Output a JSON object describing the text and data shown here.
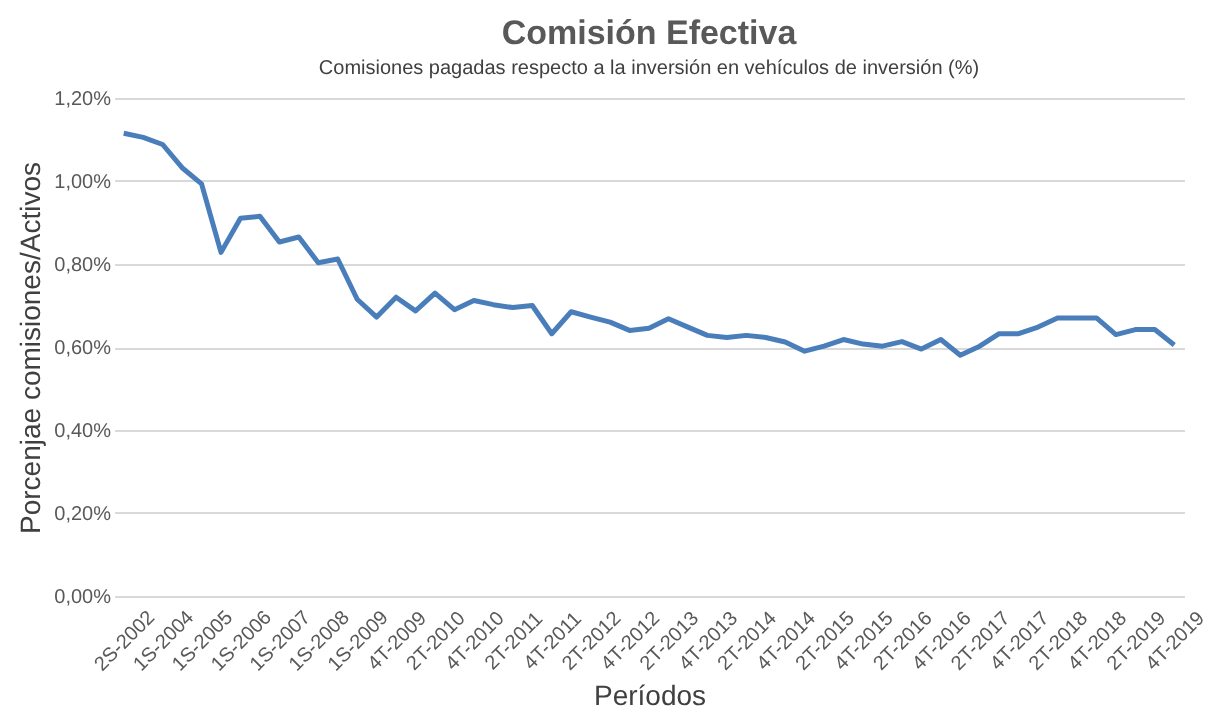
{
  "chart_data": {
    "type": "line",
    "title": "Comisión Efectiva",
    "subtitle": "Comisiones pagadas respecto a la inversión en vehículos de inversión (%)",
    "xlabel": "Períodos",
    "ylabel": "Porcenjae comisiones/Activos",
    "categories": [
      "2S-2002",
      null,
      "1S-2004",
      null,
      "1S-2005",
      null,
      "1S-2006",
      null,
      "1S-2007",
      null,
      "1S-2008",
      null,
      "1S-2009",
      null,
      "4T-2009",
      null,
      "2T-2010",
      null,
      "4T-2010",
      null,
      "2T-2011",
      null,
      "4T-2011",
      null,
      "2T-2012",
      null,
      "4T-2012",
      null,
      "2T-2013",
      null,
      "4T-2013",
      null,
      "2T-2014",
      null,
      "4T-2014",
      null,
      "2T-2015",
      null,
      "4T-2015",
      null,
      "2T-2016",
      null,
      "4T-2016",
      null,
      "2T-2017",
      null,
      "4T-2017",
      null,
      "2T-2018",
      null,
      "4T-2018",
      null,
      "2T-2019",
      null,
      "4T-2019"
    ],
    "series": [
      {
        "color": "#4a7ebb",
        "values": [
          1.115,
          1.105,
          1.088,
          1.032,
          0.993,
          0.828,
          0.91,
          0.915,
          0.853,
          0.865,
          0.803,
          0.812,
          0.715,
          0.672,
          0.72,
          0.687,
          0.73,
          0.69,
          0.712,
          0.702,
          0.695,
          0.7,
          0.632,
          0.685,
          0.672,
          0.66,
          0.64,
          0.645,
          0.668,
          0.648,
          0.628,
          0.623,
          0.628,
          0.623,
          0.612,
          0.59,
          0.602,
          0.618,
          0.607,
          0.602,
          0.613,
          0.595,
          0.618,
          0.58,
          0.602,
          0.632,
          0.632,
          0.648,
          0.67,
          0.67,
          0.67,
          0.63,
          0.642,
          0.642,
          0.605
        ]
      }
    ],
    "ylim": [
      0,
      1.2
    ],
    "yticks": [
      {
        "value": 0,
        "label": "0,00%"
      },
      {
        "value": 0.2,
        "label": "0,20%"
      },
      {
        "value": 0.4,
        "label": "0,40%"
      },
      {
        "value": 0.6,
        "label": "0,60%"
      },
      {
        "value": 0.8,
        "label": "0,80%"
      },
      {
        "value": 1.0,
        "label": "1,00%"
      },
      {
        "value": 1.2,
        "label": "1,20%"
      }
    ],
    "grid": "y",
    "legend": false,
    "marker": "none",
    "line_style": "solid"
  }
}
